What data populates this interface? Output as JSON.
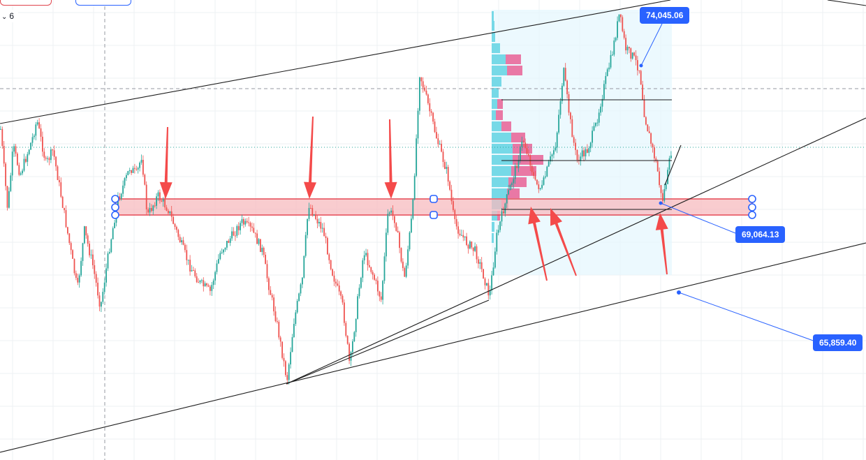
{
  "toolbar": {
    "interval_value": "6",
    "chevron_icon": "chevron-down-icon"
  },
  "annotations": {
    "label_top": "74,045.06",
    "label_mid": "69,064.13",
    "label_low": "65,859.40"
  },
  "colors": {
    "bull": "#26a69a",
    "bear": "#ef5350",
    "zone_fill": "#f8bbc0",
    "zone_border": "#e5404c",
    "arrow": "#f44a4a",
    "label_bg": "#2962ff",
    "vp_up": "#62d3e3",
    "vp_down": "#e8588e"
  }
}
